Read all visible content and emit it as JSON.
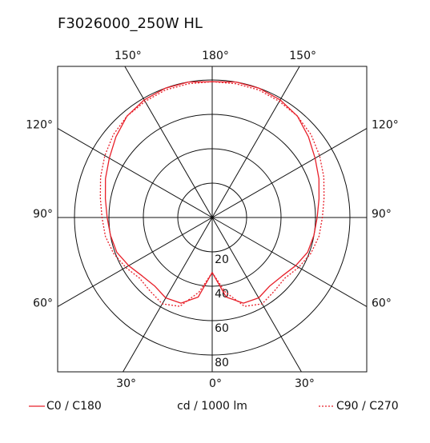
{
  "chart_data": {
    "type": "polar",
    "title": "F3026000_250W HL",
    "unit_label": "cd / 1000 lm",
    "angles": [
      0,
      10,
      20,
      30,
      40,
      50,
      60,
      70,
      80,
      90,
      100,
      110,
      120,
      130,
      140,
      150,
      160,
      170,
      180
    ],
    "series": [
      {
        "name": "C0 / C180",
        "color": "#e8202a",
        "dash": false,
        "values": [
          32,
          47,
          53,
          54,
          52,
          53,
          56,
          59,
          60,
          61,
          63,
          66,
          69,
          73,
          77,
          79,
          80,
          80,
          79
        ]
      },
      {
        "name": "C90 / C270",
        "color": "#e8202a",
        "dash": true,
        "values": [
          32,
          44,
          55,
          58,
          56,
          55,
          58,
          61,
          63,
          64,
          66,
          69,
          72,
          75,
          77,
          78,
          79,
          79,
          79
        ]
      }
    ],
    "rlim": [
      0,
      80
    ],
    "rticks": [
      20,
      40,
      60,
      80
    ],
    "angle_ticks": [
      {
        "value": 0,
        "label": "0°"
      },
      {
        "value": 30,
        "label": "30°"
      },
      {
        "value": 60,
        "label": "60°"
      },
      {
        "value": 90,
        "label": "90°"
      },
      {
        "value": 120,
        "label": "120°"
      },
      {
        "value": 150,
        "label": "150°"
      },
      {
        "value": 180,
        "label": "180°"
      }
    ]
  }
}
